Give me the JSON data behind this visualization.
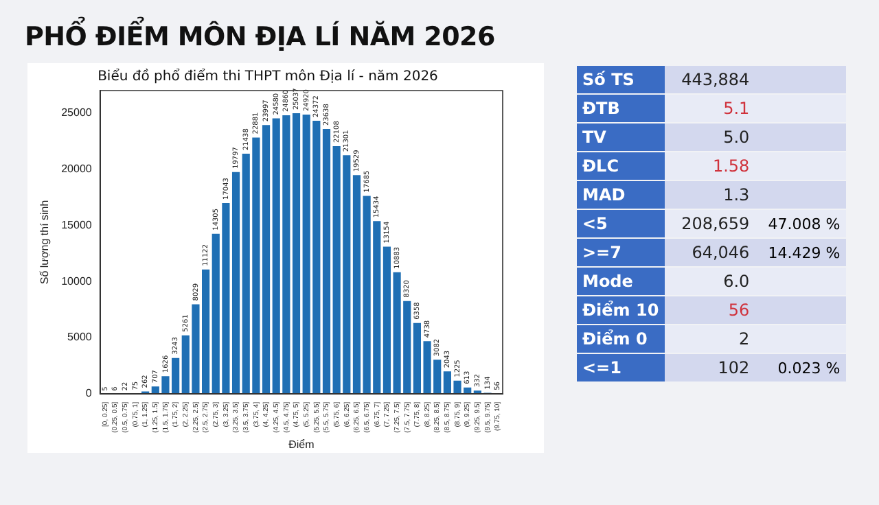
{
  "chart_data": [
    {
      "type": "bar",
      "title": "Biểu đồ phổ điểm thi THPT môn Địa lí - năm 2026",
      "xlabel": "Điểm",
      "ylabel": "Số lượng thí sinh",
      "categories": [
        "[0, 0.25]",
        "(0.25, 0.5]",
        "(0.5, 0.75]",
        "(0.75, 1]",
        "(1, 1.25]",
        "(1.25, 1.5]",
        "(1.5, 1.75]",
        "(1.75, 2]",
        "(2, 2.25]",
        "(2.25, 2.5]",
        "(2.5, 2.75]",
        "(2.75, 3]",
        "(3, 3.25]",
        "(3.25, 3.5]",
        "(3.5, 3.75]",
        "(3.75, 4]",
        "(4, 4.25]",
        "(4.25, 4.5]",
        "(4.5, 4.75]",
        "(4.75, 5]",
        "(5, 5.25]",
        "(5.25, 5.5]",
        "(5.5, 5.75]",
        "(5.75, 6]",
        "(6, 6.25]",
        "(6.25, 6.5]",
        "(6.5, 6.75]",
        "(6.75, 7]",
        "(7, 7.25]",
        "(7.25, 7.5]",
        "(7.5, 7.75]",
        "(7.75, 8]",
        "(8, 8.25]",
        "(8.25, 8.5]",
        "(8.5, 8.75]",
        "(8.75, 9]",
        "(9, 9.25]",
        "(9.25, 9.5]",
        "(9.5, 9.75]",
        "(9.75, 10]"
      ],
      "values": [
        5,
        6,
        22,
        75,
        262,
        707,
        1626,
        3243,
        5261,
        8029,
        11122,
        14305,
        17043,
        19797,
        21438,
        22881,
        23997,
        24580,
        24860,
        25037,
        24920,
        24372,
        23638,
        22108,
        21301,
        19529,
        17685,
        15434,
        13154,
        10883,
        8320,
        6358,
        4738,
        3082,
        2043,
        1225,
        613,
        332,
        134,
        56
      ],
      "color": "#1f6fb4",
      "ylim": [
        0,
        27000
      ],
      "yticks": [
        0,
        5000,
        10000,
        15000,
        20000,
        25000
      ],
      "grid": false,
      "data_labels": true
    },
    {
      "type": "other",
      "title": "PHỔ ĐIỂM MÔN ĐỊA LÍ NĂM 2026",
      "y_categories": [
        "Số TS",
        "ĐTB",
        "TV",
        "ĐLC",
        "MAD",
        "<5",
        ">=7",
        "Mode",
        "Điểm 10",
        "Điểm 0",
        "<=1"
      ],
      "cell_labels": [
        [
          "443,884",
          null
        ],
        [
          "5.1",
          null
        ],
        [
          "5.0",
          null
        ],
        [
          "1.58",
          null
        ],
        [
          "1.3",
          null
        ],
        [
          "208,659",
          "47.008 %"
        ],
        [
          "64,046",
          "14.429 %"
        ],
        [
          "6.0",
          null
        ],
        [
          "56",
          null
        ],
        [
          "2",
          null
        ],
        [
          "102",
          "0.023 %"
        ]
      ],
      "colors": [
        "#222222",
        "#d0323c",
        "#222222",
        "#d0323c",
        "#222222",
        "#222222",
        "#222222",
        "#222222",
        "#d0323c",
        "#222222",
        "#222222"
      ]
    }
  ]
}
